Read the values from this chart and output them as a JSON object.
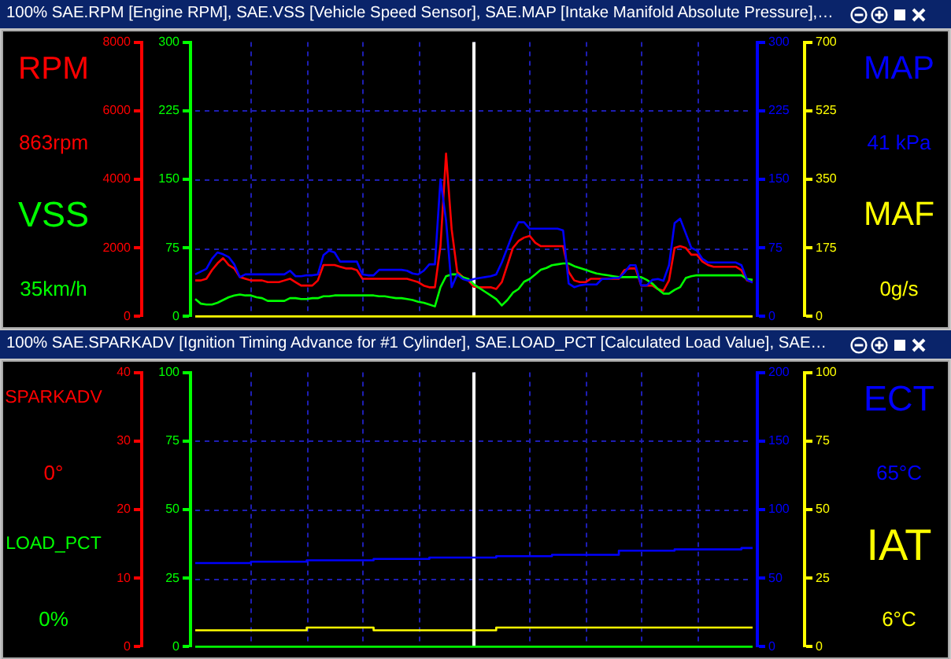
{
  "chart_data": [
    {
      "type": "line",
      "title": "100% SAE.RPM [Engine RPM], SAE.VSS [Vehicle Speed Sensor], SAE.MAP [Intake Manifold Absolute Pressure],…",
      "categories": [
        null,
        null,
        null,
        null,
        null,
        null,
        null,
        null,
        null,
        null,
        null,
        null,
        null,
        null,
        null,
        null,
        null,
        null,
        null,
        null,
        null,
        null,
        null,
        null,
        null,
        null,
        null,
        null,
        null,
        null,
        null,
        null,
        null,
        null,
        null,
        null,
        null,
        null,
        null,
        null,
        null,
        null,
        null,
        null,
        null,
        null,
        null,
        null,
        null,
        null,
        null,
        null,
        null,
        null,
        null,
        null,
        null,
        null,
        null,
        null,
        null,
        null,
        null,
        null,
        null,
        null,
        null,
        null,
        null,
        null,
        null,
        null,
        null,
        null,
        null,
        null,
        null,
        null,
        null,
        null,
        null,
        null,
        null,
        null,
        null,
        null,
        null,
        null,
        null,
        null,
        null,
        null,
        null,
        null,
        null,
        null,
        null,
        null,
        null,
        null,
        null
      ],
      "series": [
        {
          "name": "RPM",
          "color": "#ff0000",
          "values": [
            1050,
            1050,
            1100,
            1350,
            1550,
            1700,
            1500,
            1400,
            1150,
            1100,
            1050,
            1050,
            1050,
            1000,
            1000,
            1000,
            1050,
            1100,
            1000,
            900,
            900,
            900,
            1050,
            1500,
            1500,
            1500,
            1450,
            1400,
            1400,
            1350,
            1100,
            1100,
            1100,
            1100,
            1100,
            1100,
            1100,
            1100,
            1100,
            1050,
            1000,
            900,
            850,
            850,
            2050,
            4750,
            2550,
            1300,
            1150,
            1050,
            863,
            850,
            850,
            850,
            800,
            1000,
            1500,
            2000,
            2200,
            2300,
            2350,
            2150,
            2050,
            2050,
            2050,
            2050,
            2050,
            1300,
            1050,
            1000,
            1000,
            1100,
            1100,
            1100,
            1100,
            1100,
            1100,
            1350,
            1400,
            1400,
            900,
            900,
            900,
            800,
            750,
            1050,
            2000,
            2050,
            2000,
            1800,
            1800,
            1600,
            1500,
            1450,
            1450,
            1450,
            1450,
            1450,
            1350,
            1050,
            1000
          ]
        },
        {
          "name": "VSS",
          "color": "#00ff00",
          "axis": "y2",
          "values": [
            19,
            14,
            13,
            13,
            15,
            18,
            21,
            23,
            24,
            23,
            23,
            21,
            20,
            17,
            17,
            17,
            17,
            20,
            20,
            19,
            19,
            20,
            20,
            22,
            22,
            23,
            23,
            23,
            23,
            23,
            23,
            23,
            23,
            22,
            22,
            21,
            20,
            20,
            19,
            18,
            16,
            15,
            13,
            11,
            32,
            44,
            46,
            46,
            43,
            41,
            35,
            31,
            27,
            23,
            19,
            12,
            18,
            26,
            30,
            38,
            41,
            46,
            51,
            53,
            56,
            57,
            58,
            58,
            55,
            53,
            51,
            49,
            47,
            46,
            45,
            44,
            43,
            43,
            43,
            43,
            43,
            40,
            36,
            30,
            25,
            25,
            29,
            32,
            42,
            44,
            45,
            45,
            45,
            45,
            45,
            45,
            45,
            45,
            45,
            41,
            40
          ]
        },
        {
          "name": "MAP",
          "color": "#0000ff",
          "axis": "y3",
          "values": [
            46,
            49,
            52,
            63,
            70,
            68,
            65,
            57,
            43,
            46,
            46,
            46,
            46,
            46,
            46,
            46,
            46,
            50,
            44,
            44,
            45,
            45,
            46,
            67,
            72,
            70,
            60,
            60,
            60,
            60,
            46,
            45,
            45,
            51,
            51,
            51,
            51,
            51,
            50,
            47,
            46,
            50,
            57,
            57,
            150,
            105,
            32,
            46,
            41,
            39,
            41,
            42,
            43,
            44,
            46,
            59,
            75,
            91,
            103,
            103,
            96,
            96,
            96,
            96,
            96,
            96,
            94,
            36,
            32,
            34,
            35,
            35,
            35,
            41,
            41,
            42,
            42,
            48,
            56,
            56,
            34,
            34,
            40,
            41,
            39,
            56,
            102,
            107,
            91,
            75,
            72,
            63,
            59,
            59,
            59,
            59,
            59,
            59,
            56,
            40,
            37
          ]
        }
      ],
      "ylim": [
        0,
        8000
      ],
      "yticks": [
        0,
        2000,
        4000,
        6000,
        8000
      ],
      "y2lim": [
        0,
        300
      ],
      "y2ticks": [
        0,
        75,
        150,
        225,
        300
      ],
      "y3lim": [
        0,
        300
      ],
      "y3ticks": [
        0,
        75,
        150,
        225,
        300
      ],
      "annotations": [
        "863rpm",
        "35km/h",
        "41 kPa"
      ],
      "grid": true,
      "tick_labels": "y"
    },
    {
      "type": "line",
      "categories": [
        null,
        null,
        null,
        null,
        null,
        null,
        null,
        null,
        null,
        null,
        null,
        null,
        null,
        null,
        null,
        null,
        null,
        null,
        null,
        null,
        null,
        null,
        null,
        null,
        null,
        null,
        null,
        null,
        null,
        null,
        null,
        null,
        null,
        null,
        null,
        null,
        null,
        null,
        null,
        null,
        null,
        null,
        null,
        null,
        null,
        null,
        null,
        null,
        null,
        null,
        null,
        null,
        null,
        null,
        null,
        null,
        null,
        null,
        null,
        null,
        null,
        null,
        null,
        null,
        null,
        null,
        null,
        null,
        null,
        null,
        null,
        null,
        null,
        null,
        null,
        null,
        null,
        null,
        null,
        null,
        null,
        null,
        null,
        null,
        null,
        null,
        null,
        null,
        null,
        null,
        null,
        null,
        null,
        null,
        null,
        null,
        null,
        null,
        null,
        null,
        null
      ],
      "series": [
        {
          "name": "MAF",
          "color": "#ffff00",
          "values": [
            0,
            0,
            0,
            0,
            0,
            0,
            0,
            0,
            0,
            0,
            0,
            0,
            0,
            0,
            0,
            0,
            0,
            0,
            0,
            0,
            0,
            0,
            0,
            0,
            0,
            0,
            0,
            0,
            0,
            0,
            0,
            0,
            0,
            0,
            0,
            0,
            0,
            0,
            0,
            0,
            0,
            0,
            0,
            0,
            0,
            0,
            0,
            0,
            0,
            0,
            0,
            0,
            0,
            0,
            0,
            0,
            0,
            0,
            0,
            0,
            0,
            0,
            0,
            0,
            0,
            0,
            0,
            0,
            0,
            0,
            0,
            0,
            0,
            0,
            0,
            0,
            0,
            0,
            0,
            0,
            0,
            0,
            0,
            0,
            0,
            0,
            0,
            0,
            0,
            0,
            0,
            0,
            0,
            0,
            0,
            0,
            0,
            0,
            0,
            0,
            0
          ]
        }
      ],
      "ylim": [
        0,
        700
      ],
      "yticks": [
        0,
        175,
        350,
        525,
        700
      ],
      "annotations": [
        "0g/s"
      ],
      "tick_labels": "y"
    },
    {
      "type": "step",
      "title": "100% SAE.SPARKADV [Ignition Timing Advance for #1 Cylinder], SAE.LOAD_PCT [Calculated Load Value], SAE…",
      "categories": [
        null,
        null,
        null,
        null,
        null,
        null,
        null,
        null,
        null,
        null,
        null,
        null,
        null,
        null,
        null,
        null,
        null,
        null,
        null,
        null,
        null,
        null,
        null,
        null,
        null,
        null,
        null,
        null,
        null,
        null,
        null,
        null,
        null,
        null,
        null,
        null,
        null,
        null,
        null,
        null,
        null,
        null,
        null,
        null,
        null,
        null,
        null,
        null,
        null,
        null,
        null
      ],
      "series": [
        {
          "name": "SPARKADV",
          "color": "#ff0000",
          "values": [
            null,
            null,
            null,
            null,
            null,
            null,
            null,
            null,
            null,
            null,
            null,
            null,
            null,
            null,
            null,
            null,
            null,
            null,
            null,
            null,
            null,
            null,
            null,
            null,
            null,
            null,
            null,
            null,
            null,
            null,
            null,
            null,
            null,
            null,
            null,
            null,
            null,
            null,
            null,
            null,
            null,
            null,
            null,
            null,
            null,
            null,
            null,
            null,
            null,
            null,
            null
          ]
        },
        {
          "name": "LOAD_PCT",
          "color": "#00ff00",
          "axis": "y2",
          "values": [
            0,
            0,
            0,
            0,
            0,
            0,
            0,
            0,
            0,
            0,
            0,
            0,
            0,
            0,
            0,
            0,
            0,
            0,
            0,
            0,
            0,
            0,
            0,
            0,
            0,
            0,
            0,
            0,
            0,
            0,
            0,
            0,
            0,
            0,
            0,
            0,
            0,
            0,
            0,
            0,
            0,
            0,
            0,
            0,
            0,
            0,
            0,
            0,
            0,
            0,
            0
          ]
        },
        {
          "name": "ECT",
          "color": "#0000ff",
          "axis": "y3",
          "values": [
            61,
            61,
            61,
            61,
            61,
            62,
            62,
            62,
            62,
            62,
            63,
            63,
            63,
            63,
            63,
            63,
            64,
            64,
            64,
            64,
            64,
            65,
            65,
            65,
            65,
            65,
            65,
            66,
            66,
            66,
            66,
            66,
            67,
            67,
            67,
            67,
            67,
            67,
            70,
            70,
            70,
            70,
            70,
            71,
            71,
            71,
            71,
            71,
            71,
            72,
            72
          ]
        }
      ],
      "ylim": [
        0,
        40
      ],
      "yticks": [
        0,
        10,
        20,
        30,
        40
      ],
      "y2lim": [
        0,
        100
      ],
      "y2ticks": [
        0,
        25,
        50,
        75,
        100
      ],
      "y3lim": [
        0,
        200
      ],
      "y3ticks": [
        0,
        50,
        100,
        150,
        200
      ],
      "annotations": [
        "0°",
        "0%",
        "65°C"
      ],
      "grid": true,
      "tick_labels": "y"
    },
    {
      "type": "step",
      "categories": [
        null,
        null,
        null,
        null,
        null,
        null,
        null,
        null,
        null,
        null,
        null,
        null,
        null,
        null,
        null,
        null,
        null,
        null,
        null,
        null,
        null,
        null,
        null,
        null,
        null,
        null,
        null,
        null,
        null,
        null,
        null,
        null,
        null,
        null,
        null,
        null,
        null,
        null,
        null,
        null,
        null,
        null,
        null,
        null,
        null,
        null,
        null,
        null,
        null,
        null,
        null
      ],
      "series": [
        {
          "name": "IAT",
          "color": "#ffff00",
          "values": [
            6,
            6,
            6,
            6,
            6,
            6,
            6,
            6,
            6,
            6,
            7,
            7,
            7,
            7,
            7,
            7,
            6,
            6,
            6,
            6,
            6,
            6,
            6,
            6,
            6,
            6,
            6,
            7,
            7,
            7,
            7,
            7,
            7,
            7,
            7,
            7,
            7,
            7,
            7,
            7,
            7,
            7,
            7,
            7,
            7,
            7,
            7,
            7,
            7,
            7,
            7
          ]
        }
      ],
      "ylim": [
        0,
        100
      ],
      "yticks": [
        0,
        25,
        50,
        75,
        100
      ],
      "annotations": [
        "6°C"
      ],
      "tick_labels": "y"
    }
  ]
}
